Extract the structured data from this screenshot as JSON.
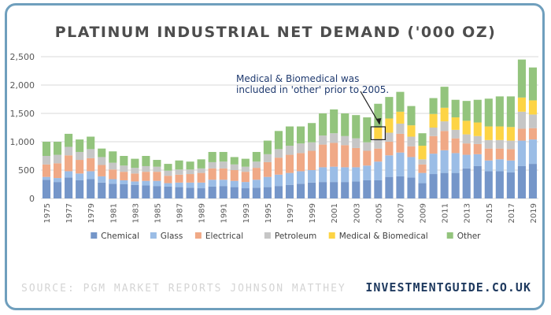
{
  "chart_data": {
    "type": "bar",
    "stacked": true,
    "title": "PLATINUM INDUSTRIAL NET DEMAND ('000 OZ)",
    "xlabel": "",
    "ylabel": "",
    "ylim": [
      0,
      2500
    ],
    "yticks": [
      "0",
      "500",
      "1,000",
      "1,500",
      "2,000",
      "2,500"
    ],
    "ytick_values": [
      0,
      500,
      1000,
      1500,
      2000,
      2500
    ],
    "grid": true,
    "legend_position": "bottom",
    "categories": [
      "1975",
      "1976",
      "1977",
      "1978",
      "1979",
      "1980",
      "1981",
      "1982",
      "1983",
      "1984",
      "1985",
      "1986",
      "1987",
      "1988",
      "1989",
      "1990",
      "1991",
      "1992",
      "1993",
      "1994",
      "1995",
      "1996",
      "1997",
      "1998",
      "1999",
      "2000",
      "2001",
      "2002",
      "2003",
      "2004",
      "2005",
      "2006",
      "2007",
      "2008",
      "2009",
      "2010",
      "2011",
      "2012",
      "2013",
      "2014",
      "2015",
      "2016",
      "2017",
      "2018",
      "2019"
    ],
    "series": [
      {
        "name": "Chemical",
        "color": "#7596c9",
        "values": [
          330,
          290,
          370,
          320,
          340,
          280,
          260,
          250,
          240,
          230,
          220,
          210,
          200,
          190,
          180,
          210,
          220,
          200,
          180,
          190,
          200,
          220,
          240,
          260,
          280,
          290,
          290,
          290,
          300,
          320,
          320,
          380,
          390,
          370,
          270,
          430,
          450,
          450,
          530,
          570,
          480,
          480,
          460,
          570,
          610
        ]
      },
      {
        "name": "Glass",
        "color": "#9bbde6",
        "values": [
          50,
          70,
          110,
          120,
          140,
          110,
          80,
          70,
          60,
          80,
          90,
          60,
          80,
          90,
          100,
          120,
          110,
          110,
          110,
          140,
          180,
          200,
          210,
          220,
          220,
          260,
          270,
          260,
          250,
          260,
          330,
          380,
          420,
          360,
          180,
          360,
          400,
          350,
          240,
          210,
          190,
          210,
          210,
          450,
          430
        ]
      },
      {
        "name": "Electrical",
        "color": "#f0a986",
        "values": [
          220,
          260,
          280,
          240,
          230,
          200,
          170,
          150,
          140,
          160,
          160,
          130,
          140,
          150,
          170,
          200,
          200,
          190,
          180,
          210,
          260,
          300,
          320,
          320,
          340,
          400,
          420,
          390,
          340,
          260,
          230,
          240,
          330,
          190,
          150,
          310,
          340,
          260,
          200,
          180,
          210,
          190,
          200,
          210,
          200
        ]
      },
      {
        "name": "Petroleum",
        "color": "#c6c6c6",
        "values": [
          150,
          150,
          150,
          140,
          160,
          140,
          120,
          110,
          100,
          100,
          90,
          90,
          90,
          80,
          80,
          110,
          120,
          100,
          90,
          110,
          140,
          150,
          160,
          170,
          150,
          160,
          170,
          160,
          170,
          150,
          170,
          160,
          180,
          170,
          90,
          150,
          170,
          150,
          160,
          140,
          150,
          150,
          150,
          300,
          240
        ]
      },
      {
        "name": "Medical & Biomedical",
        "color": "#fdd445",
        "values": [
          0,
          0,
          0,
          0,
          0,
          0,
          0,
          0,
          0,
          0,
          0,
          0,
          0,
          0,
          0,
          0,
          0,
          0,
          0,
          0,
          0,
          0,
          0,
          0,
          0,
          0,
          0,
          0,
          0,
          0,
          200,
          250,
          210,
          200,
          240,
          240,
          240,
          220,
          240,
          240,
          240,
          240,
          240,
          250,
          250
        ]
      },
      {
        "name": "Other",
        "color": "#93c47d",
        "values": [
          250,
          230,
          230,
          220,
          220,
          150,
          200,
          170,
          160,
          180,
          120,
          120,
          160,
          140,
          160,
          180,
          170,
          130,
          140,
          170,
          240,
          320,
          340,
          300,
          340,
          390,
          420,
          400,
          410,
          440,
          420,
          380,
          350,
          340,
          220,
          280,
          370,
          310,
          350,
          400,
          490,
          530,
          540,
          670,
          580
        ]
      }
    ],
    "annotation": "Medical & Biomedical was included in 'other' prior to 2005."
  },
  "footer": {
    "source": "SOURCE: PGM MARKET REPORTS JOHNSON MATTHEY",
    "brand": "INVESTMENTGUIDE.CO.UK"
  }
}
